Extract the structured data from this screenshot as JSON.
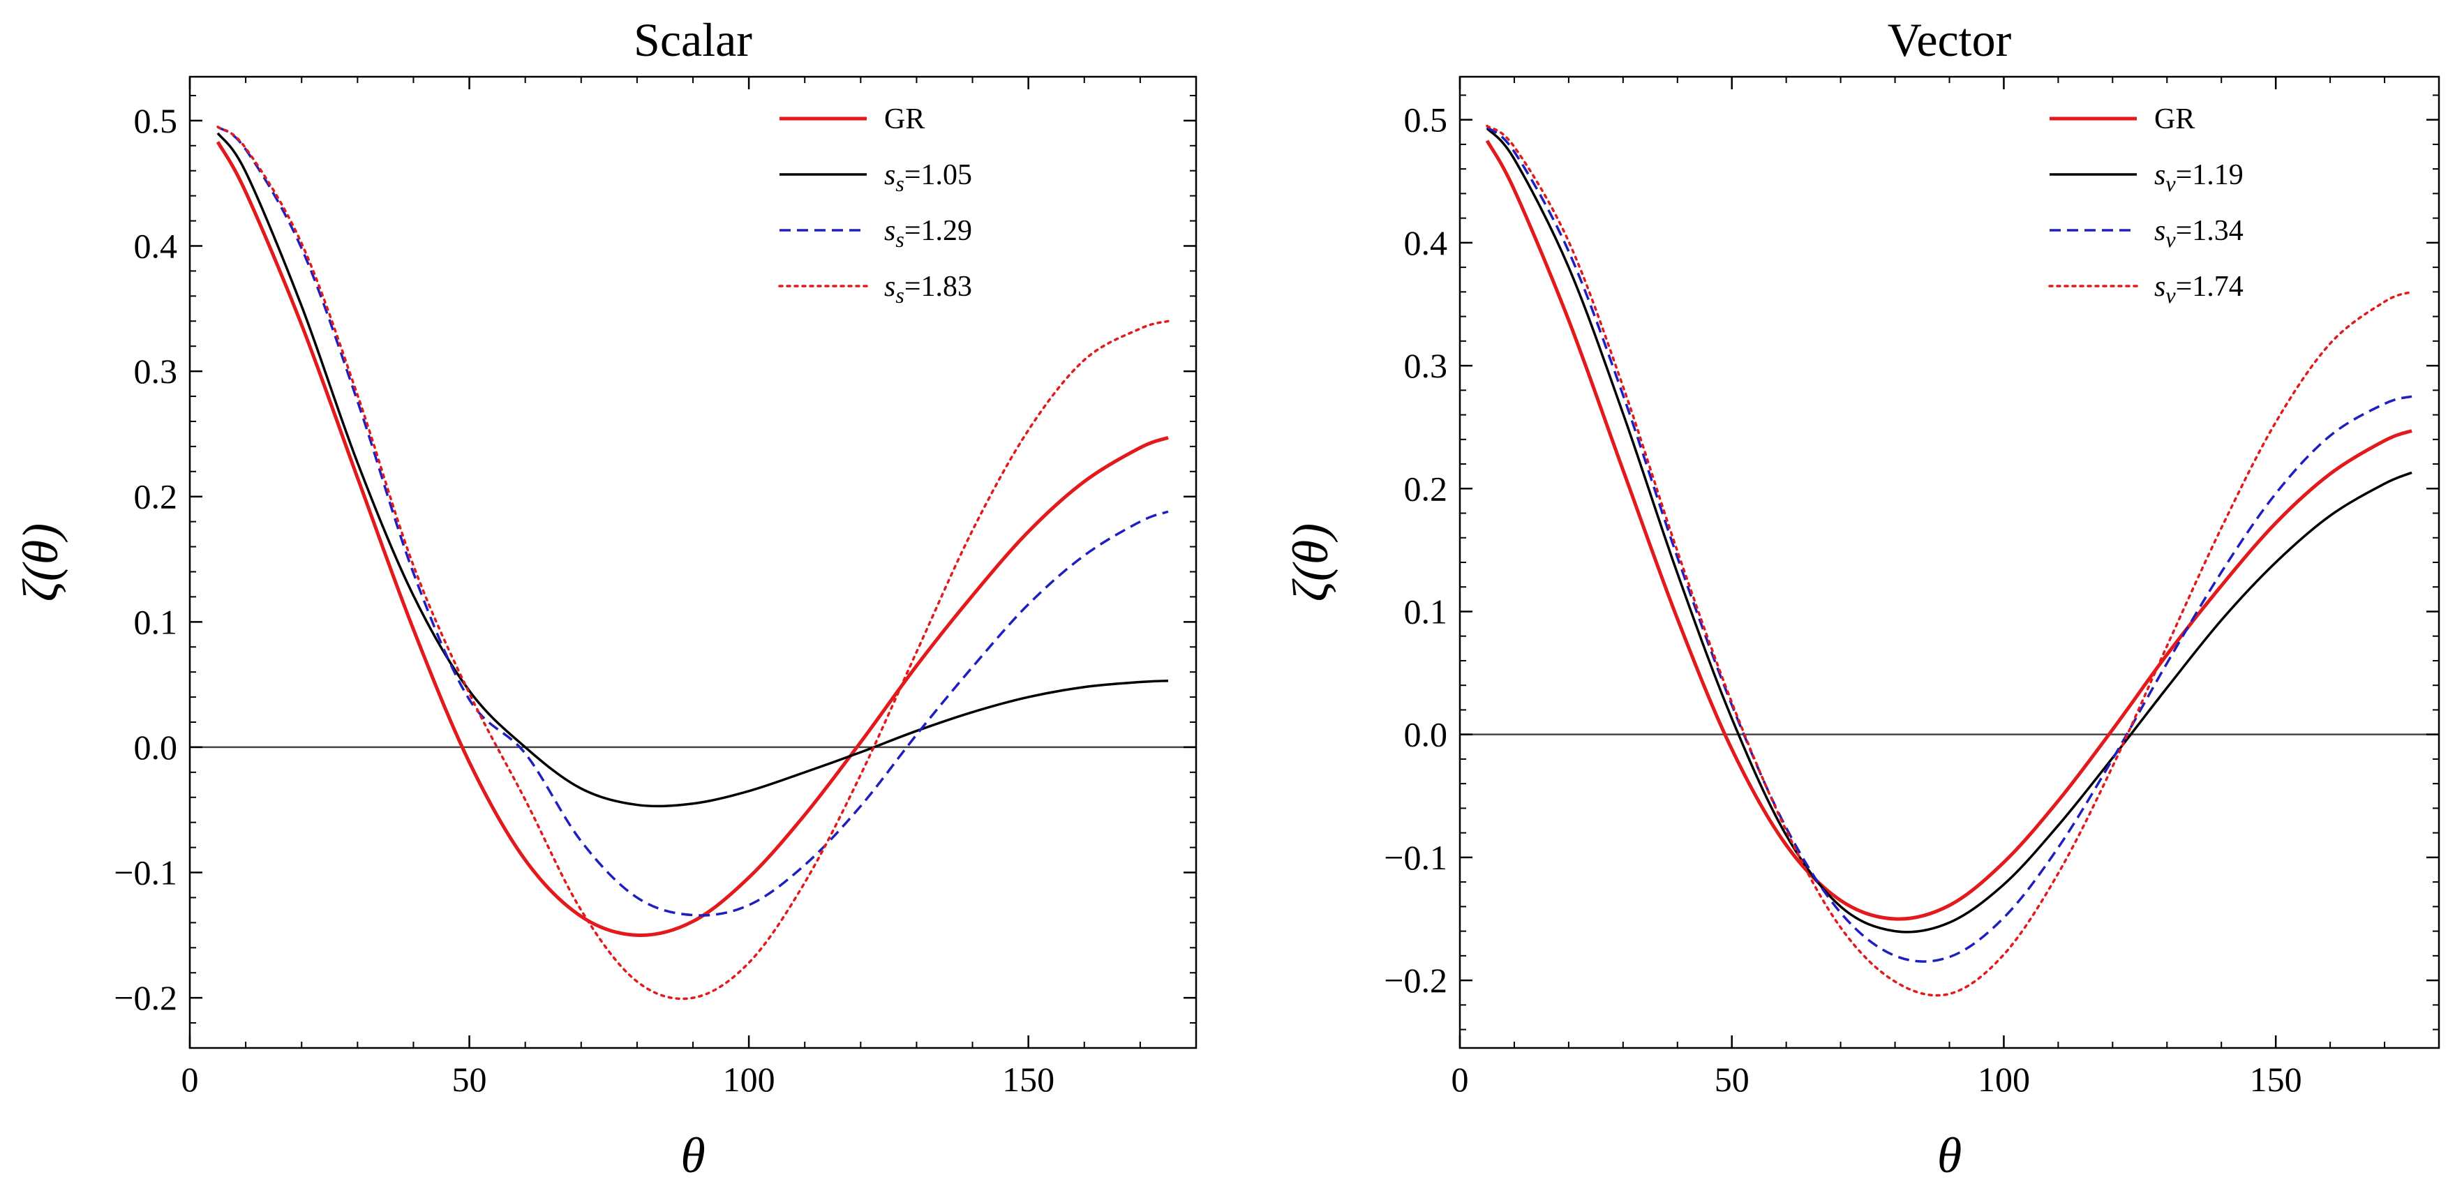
{
  "chart_data": [
    {
      "type": "line",
      "title": "Scalar",
      "xlabel": "θ",
      "ylabel": "ζ(θ)",
      "xlim": [
        0,
        180
      ],
      "ylim": [
        -0.24,
        0.535
      ],
      "xticks": [
        0,
        50,
        100,
        150
      ],
      "xtick_labels": [
        "0",
        "50",
        "100",
        "150"
      ],
      "yticks": [
        -0.2,
        -0.1,
        0.0,
        0.1,
        0.2,
        0.3,
        0.4,
        0.5
      ],
      "ytick_labels": [
        "−0.2",
        "−0.1",
        "0.0",
        "0.1",
        "0.2",
        "0.3",
        "0.4",
        "0.5"
      ],
      "zero_line": true,
      "legend_position": "top-right",
      "series": [
        {
          "name": "GR",
          "label_main": "GR",
          "label_sub": "",
          "label_value": "",
          "color": "#e31a1c",
          "style": "solid",
          "width": 5,
          "x": [
            5,
            10,
            20,
            30,
            40,
            50,
            60,
            70,
            80,
            90,
            100,
            110,
            120,
            130,
            140,
            150,
            160,
            170,
            175
          ],
          "y": [
            0.483,
            0.443,
            0.337,
            0.215,
            0.094,
            -0.012,
            -0.09,
            -0.135,
            -0.15,
            -0.139,
            -0.104,
            -0.054,
            0.004,
            0.065,
            0.121,
            0.172,
            0.212,
            0.239,
            0.247
          ]
        },
        {
          "name": "s_s=1.05",
          "label_main": "s",
          "label_sub": "s",
          "label_value": "=1.05",
          "color": "#000000",
          "style": "solid",
          "width": 3.5,
          "x": [
            5,
            10,
            20,
            30,
            40,
            50,
            60,
            70,
            80,
            90,
            100,
            110,
            120,
            130,
            140,
            150,
            160,
            170,
            175
          ],
          "y": [
            0.49,
            0.459,
            0.352,
            0.227,
            0.121,
            0.045,
            0.0,
            -0.033,
            -0.046,
            -0.045,
            -0.035,
            -0.02,
            -0.004,
            0.013,
            0.028,
            0.04,
            0.048,
            0.052,
            0.053
          ]
        },
        {
          "name": "s_s=1.29",
          "label_main": "s",
          "label_sub": "s",
          "label_value": "=1.29",
          "color": "#1f1fbf",
          "style": "dashed",
          "width": 3.5,
          "x": [
            5,
            10,
            20,
            30,
            40,
            50,
            60,
            70,
            80,
            90,
            100,
            110,
            120,
            130,
            140,
            150,
            160,
            170,
            175
          ],
          "y": [
            0.495,
            0.477,
            0.398,
            0.276,
            0.139,
            0.038,
            -0.005,
            -0.075,
            -0.12,
            -0.134,
            -0.126,
            -0.094,
            -0.047,
            0.01,
            0.064,
            0.114,
            0.153,
            0.18,
            0.188
          ]
        },
        {
          "name": "s_s=1.83",
          "label_main": "s",
          "label_sub": "s",
          "label_value": "=1.83",
          "color": "#e31a1c",
          "style": "dotted",
          "width": 3.5,
          "x": [
            5,
            10,
            20,
            30,
            40,
            50,
            60,
            70,
            80,
            90,
            100,
            110,
            120,
            130,
            140,
            150,
            160,
            170,
            175
          ],
          "y": [
            0.495,
            0.478,
            0.402,
            0.281,
            0.145,
            0.043,
            -0.042,
            -0.13,
            -0.187,
            -0.2,
            -0.172,
            -0.108,
            -0.022,
            0.076,
            0.173,
            0.253,
            0.309,
            0.334,
            0.34
          ]
        }
      ]
    },
    {
      "type": "line",
      "title": "Vector",
      "xlabel": "θ",
      "ylabel": "ζ(θ)",
      "xlim": [
        0,
        180
      ],
      "ylim": [
        -0.255,
        0.535
      ],
      "xticks": [
        0,
        50,
        100,
        150
      ],
      "xtick_labels": [
        "0",
        "50",
        "100",
        "150"
      ],
      "yticks": [
        -0.2,
        -0.1,
        0.0,
        0.1,
        0.2,
        0.3,
        0.4,
        0.5
      ],
      "ytick_labels": [
        "−0.2",
        "−0.1",
        "0.0",
        "0.1",
        "0.2",
        "0.3",
        "0.4",
        "0.5"
      ],
      "zero_line": true,
      "legend_position": "top-right",
      "series": [
        {
          "name": "GR",
          "label_main": "GR",
          "label_sub": "",
          "label_value": "",
          "color": "#e31a1c",
          "style": "solid",
          "width": 5,
          "x": [
            5,
            10,
            20,
            30,
            40,
            50,
            60,
            70,
            80,
            90,
            100,
            110,
            120,
            130,
            140,
            150,
            160,
            170,
            175
          ],
          "y": [
            0.483,
            0.443,
            0.337,
            0.215,
            0.094,
            -0.012,
            -0.09,
            -0.135,
            -0.15,
            -0.139,
            -0.104,
            -0.054,
            0.004,
            0.065,
            0.121,
            0.172,
            0.212,
            0.239,
            0.247
          ]
        },
        {
          "name": "s_v=1.19",
          "label_main": "s",
          "label_sub": "v",
          "label_value": "=1.19",
          "color": "#000000",
          "style": "solid",
          "width": 3.5,
          "x": [
            5,
            10,
            20,
            30,
            40,
            50,
            60,
            70,
            80,
            90,
            100,
            110,
            120,
            130,
            140,
            150,
            160,
            170,
            175
          ],
          "y": [
            0.493,
            0.468,
            0.38,
            0.261,
            0.131,
            0.013,
            -0.082,
            -0.14,
            -0.16,
            -0.153,
            -0.122,
            -0.074,
            -0.019,
            0.038,
            0.093,
            0.14,
            0.178,
            0.204,
            0.213
          ]
        },
        {
          "name": "s_v=1.34",
          "label_main": "s",
          "label_sub": "v",
          "label_value": "=1.34",
          "color": "#1f1fbf",
          "style": "dashed",
          "width": 3.5,
          "x": [
            5,
            10,
            20,
            30,
            40,
            50,
            60,
            70,
            80,
            90,
            100,
            110,
            120,
            130,
            140,
            150,
            160,
            170,
            175
          ],
          "y": [
            0.494,
            0.474,
            0.393,
            0.276,
            0.144,
            0.024,
            -0.076,
            -0.145,
            -0.18,
            -0.181,
            -0.149,
            -0.092,
            -0.02,
            0.058,
            0.132,
            0.196,
            0.243,
            0.269,
            0.275
          ]
        },
        {
          "name": "s_v=1.74",
          "label_main": "s",
          "label_sub": "v",
          "label_value": "=1.74",
          "color": "#e31a1c",
          "style": "dotted",
          "width": 3.5,
          "x": [
            5,
            10,
            20,
            30,
            40,
            50,
            60,
            70,
            80,
            90,
            100,
            110,
            120,
            130,
            140,
            150,
            160,
            170,
            175
          ],
          "y": [
            0.495,
            0.478,
            0.401,
            0.283,
            0.149,
            0.026,
            -0.078,
            -0.157,
            -0.201,
            -0.211,
            -0.179,
            -0.113,
            -0.026,
            0.072,
            0.168,
            0.254,
            0.318,
            0.352,
            0.36
          ]
        }
      ]
    }
  ]
}
